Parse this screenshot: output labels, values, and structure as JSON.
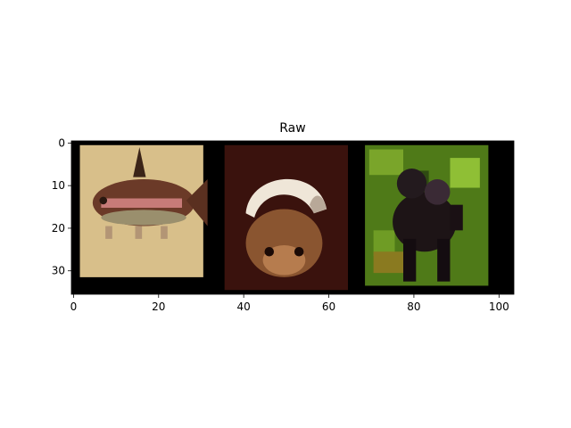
{
  "chart_data": {
    "type": "image",
    "title": "Raw",
    "xlabel": "",
    "ylabel": "",
    "image_size": [
      104,
      36
    ],
    "xlim": [
      -0.5,
      103.5
    ],
    "ylim": [
      35.5,
      -0.5
    ],
    "xticks": [
      0,
      20,
      40,
      60,
      80,
      100
    ],
    "yticks": [
      0,
      10,
      20,
      30
    ],
    "grid": false,
    "panels": [
      {
        "subject": "fish",
        "x_range": [
          2,
          30
        ],
        "y_range": [
          1,
          31
        ],
        "background": "#d8bf8a"
      },
      {
        "subject": "hamster with white helmet",
        "x_range": [
          36,
          64
        ],
        "y_range": [
          1,
          34
        ],
        "background": "#3a120d"
      },
      {
        "subject": "dark animal on green foliage",
        "x_range": [
          69,
          97
        ],
        "y_range": [
          1,
          33
        ],
        "background": "#4f7a18"
      }
    ],
    "frame_color": "#000000"
  }
}
